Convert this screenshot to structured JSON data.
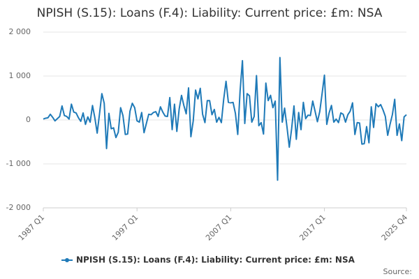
{
  "chart_data": {
    "type": "line",
    "title": "NPISH (S.15): Loans (F.4): Liability: Current price: £m: NSA",
    "source": "Source:",
    "categories": [
      "1987 Q1",
      null,
      null,
      null,
      null,
      null,
      null,
      null,
      null,
      null,
      null,
      null,
      null,
      null,
      null,
      null,
      null,
      null,
      null,
      null,
      null,
      null,
      null,
      null,
      null,
      null,
      null,
      null,
      null,
      null,
      null,
      null,
      null,
      null,
      null,
      null,
      null,
      null,
      null,
      null,
      "1997 Q1",
      null,
      null,
      null,
      null,
      null,
      null,
      null,
      null,
      null,
      null,
      null,
      null,
      null,
      null,
      null,
      null,
      null,
      null,
      null,
      null,
      null,
      null,
      null,
      null,
      null,
      null,
      null,
      null,
      null,
      null,
      null,
      null,
      null,
      null,
      null,
      null,
      null,
      null,
      null,
      "2007 Q1",
      null,
      null,
      null,
      null,
      null,
      null,
      null,
      null,
      null,
      null,
      null,
      null,
      null,
      null,
      null,
      null,
      null,
      null,
      null,
      null,
      null,
      null,
      null,
      null,
      null,
      null,
      null,
      null,
      null,
      null,
      null,
      null,
      null,
      null,
      null,
      null,
      null,
      null,
      null,
      "2017 Q1",
      null,
      null,
      null,
      null,
      null,
      null,
      null,
      null,
      null,
      null,
      null,
      null,
      null,
      null,
      null,
      null,
      null,
      null,
      null,
      null,
      null,
      null,
      null,
      null,
      null,
      null,
      null,
      null,
      null,
      null,
      null,
      null,
      null,
      null,
      "2025 Q4"
    ],
    "series": [
      {
        "name": "NPISH (S.15): Loans (F.4): Liability: Current price: £m: NSA",
        "color": "#1f7ab8",
        "values": [
          20,
          40,
          50,
          130,
          60,
          -20,
          30,
          80,
          320,
          100,
          80,
          20,
          360,
          180,
          160,
          50,
          -30,
          160,
          -100,
          70,
          -50,
          330,
          50,
          -300,
          140,
          600,
          380,
          -650,
          150,
          -200,
          -180,
          -400,
          -280,
          280,
          100,
          -330,
          -320,
          200,
          380,
          280,
          -20,
          -50,
          170,
          -290,
          -80,
          130,
          120,
          170,
          190,
          80,
          300,
          180,
          90,
          80,
          510,
          -220,
          360,
          -260,
          250,
          560,
          330,
          140,
          730,
          -380,
          -20,
          680,
          480,
          720,
          130,
          -60,
          440,
          440,
          120,
          240,
          -50,
          60,
          -60,
          470,
          880,
          400,
          390,
          400,
          150,
          -330,
          660,
          1350,
          -80,
          600,
          550,
          -50,
          80,
          1010,
          -130,
          -60,
          -320,
          840,
          440,
          560,
          280,
          430,
          -1370,
          1420,
          -50,
          270,
          -150,
          -620,
          -200,
          320,
          -440,
          170,
          -220,
          400,
          30,
          110,
          100,
          430,
          200,
          -40,
          190,
          600,
          1020,
          -100,
          160,
          330,
          -50,
          20,
          -60,
          160,
          130,
          -50,
          120,
          200,
          390,
          -330,
          -60,
          -70,
          -550,
          -540,
          -150,
          -520,
          300,
          -170,
          370,
          300,
          350,
          230,
          80,
          -350,
          -100,
          120,
          470,
          -350,
          -90,
          -470,
          70,
          120
        ]
      }
    ],
    "ylim": [
      -2000,
      2000
    ],
    "yticks": [
      {
        "value": -2000,
        "label": "-2 000"
      },
      {
        "value": -1000,
        "label": "-1 000"
      },
      0,
      {
        "value": 1000,
        "label": "1 000"
      },
      {
        "value": 2000,
        "label": "2 000"
      }
    ],
    "grid": true,
    "legend": "bottom"
  }
}
